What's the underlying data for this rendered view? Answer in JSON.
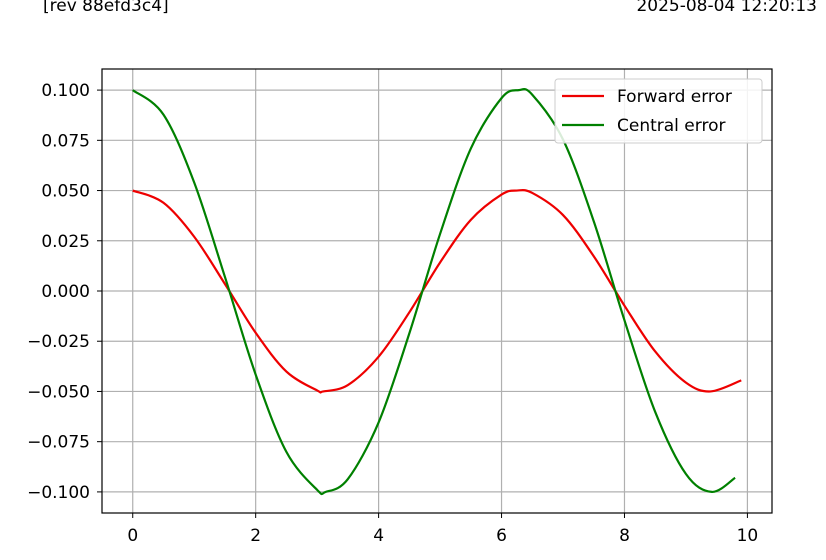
{
  "header": {
    "revision": "[rev 88efd3c4]",
    "timestamp": "2025-08-04 12:20:13"
  },
  "chart_data": {
    "type": "line",
    "title": "",
    "xlabel": "",
    "ylabel": "",
    "xlim": [
      -0.5,
      10.4
    ],
    "ylim": [
      -0.1105,
      0.1105
    ],
    "x_ticks": [
      0,
      2,
      4,
      6,
      8,
      10
    ],
    "x_tick_labels": [
      "0",
      "2",
      "4",
      "6",
      "8",
      "10"
    ],
    "y_ticks": [
      0.1,
      0.075,
      0.05,
      0.025,
      0.0,
      -0.025,
      -0.05,
      -0.075,
      -0.1
    ],
    "y_tick_labels": [
      "0.100",
      "0.075",
      "0.050",
      "0.025",
      "0.000",
      "−0.025",
      "−0.050",
      "−0.075",
      "−0.100"
    ],
    "grid": true,
    "legend": "top-right",
    "series": [
      {
        "name": "Forward error",
        "color": "#ee0000",
        "x": [
          0.0,
          0.5,
          1.0,
          1.5,
          2.0,
          2.5,
          3.0,
          3.1,
          3.5,
          4.0,
          4.5,
          5.0,
          5.5,
          6.0,
          6.25,
          6.5,
          7.0,
          7.5,
          8.0,
          8.5,
          9.0,
          9.4,
          9.9
        ],
        "y": [
          0.05,
          0.0439,
          0.027,
          0.0035,
          -0.0208,
          -0.0401,
          -0.0495,
          -0.05,
          -0.0468,
          -0.0327,
          -0.0106,
          0.0142,
          0.0354,
          0.048,
          0.05,
          0.0488,
          0.0378,
          0.0173,
          -0.0073,
          -0.0301,
          -0.0456,
          -0.05,
          -0.0445
        ]
      },
      {
        "name": "Central error",
        "color": "#008000",
        "x": [
          0.0,
          0.5,
          1.0,
          1.5,
          2.0,
          2.5,
          3.0,
          3.14,
          3.5,
          4.0,
          4.5,
          5.0,
          5.5,
          6.0,
          6.28,
          6.5,
          7.0,
          7.5,
          8.0,
          8.5,
          9.0,
          9.42,
          9.8
        ],
        "y": [
          0.1,
          0.0878,
          0.054,
          0.007,
          -0.0416,
          -0.0801,
          -0.099,
          -0.1,
          -0.0936,
          -0.0654,
          -0.0211,
          0.0284,
          0.0709,
          0.096,
          0.1,
          0.0977,
          0.0754,
          0.0347,
          -0.0146,
          -0.0602,
          -0.0911,
          -0.1,
          -0.093
        ]
      }
    ]
  }
}
